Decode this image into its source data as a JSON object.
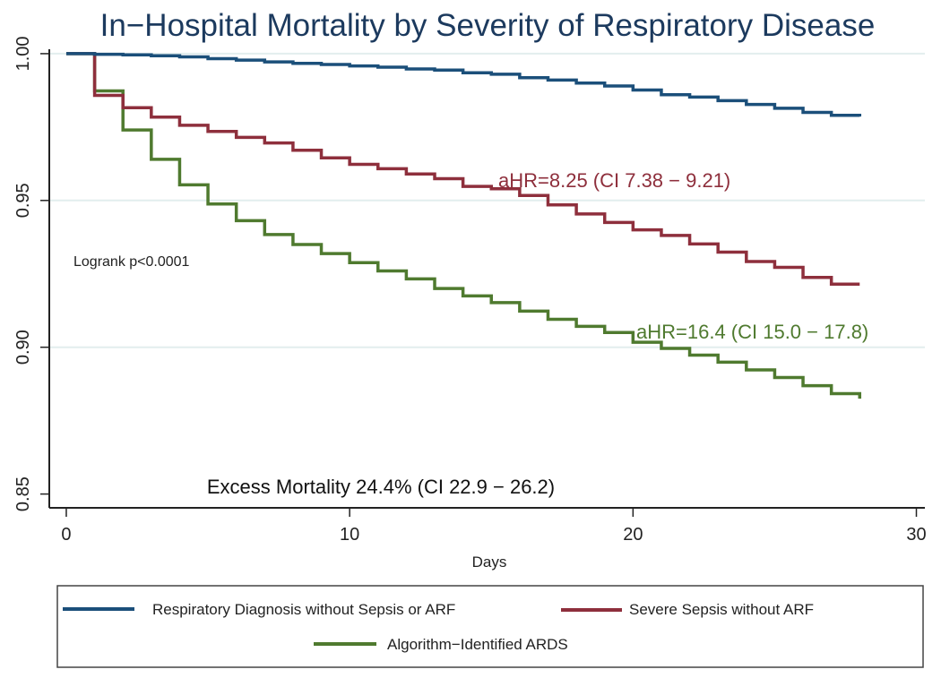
{
  "chart_data": {
    "type": "line",
    "style": "step",
    "title": "In−Hospital Mortality by Severity of Respiratory Disease",
    "xlabel": "Days",
    "ylabel": "",
    "xlim": [
      -0.6,
      30.3
    ],
    "ylim": [
      0.8453,
      1.0015
    ],
    "xticks": [
      0,
      10,
      20,
      30
    ],
    "xtick_labels": [
      "0",
      "10",
      "20",
      "30"
    ],
    "yticks": [
      0.85,
      0.9,
      0.95,
      1.0
    ],
    "ytick_labels": [
      "0.85",
      "0.90",
      "0.95",
      "1.00"
    ],
    "grid": true,
    "x": [
      0,
      1,
      2,
      3,
      4,
      5,
      6,
      7,
      8,
      9,
      10,
      11,
      12,
      13,
      14,
      15,
      16,
      17,
      18,
      19,
      20,
      21,
      22,
      23,
      24,
      25,
      26,
      27,
      28
    ],
    "series": [
      {
        "name": "Respiratory Diagnosis without Sepsis or ARF",
        "color": "#1b4f7a",
        "values": [
          1.0,
          0.9998,
          0.9996,
          0.9993,
          0.9989,
          0.9983,
          0.9978,
          0.9972,
          0.9967,
          0.9963,
          0.9958,
          0.9954,
          0.9948,
          0.9944,
          0.9935,
          0.993,
          0.9918,
          0.991,
          0.99,
          0.989,
          0.9876,
          0.986,
          0.9852,
          0.984,
          0.9827,
          0.9814,
          0.98,
          0.979,
          0.9786
        ]
      },
      {
        "name": "Severe Sepsis without ARF",
        "color": "#8e2f3c",
        "values": [
          1.0,
          0.9858,
          0.9816,
          0.9784,
          0.9756,
          0.9735,
          0.9715,
          0.9696,
          0.9671,
          0.9645,
          0.9623,
          0.9608,
          0.959,
          0.9574,
          0.9548,
          0.954,
          0.9517,
          0.9485,
          0.9454,
          0.9425,
          0.94,
          0.9381,
          0.9352,
          0.9324,
          0.9292,
          0.9272,
          0.9238,
          0.9215,
          0.9215
        ]
      },
      {
        "name": "Algorithm−Identified ARDS",
        "color": "#4f7a2f",
        "values": [
          1.0,
          0.9873,
          0.974,
          0.964,
          0.9553,
          0.9488,
          0.9431,
          0.9384,
          0.935,
          0.9319,
          0.9288,
          0.926,
          0.9233,
          0.92,
          0.9175,
          0.9152,
          0.9123,
          0.9095,
          0.9071,
          0.905,
          0.9017,
          0.8996,
          0.8973,
          0.8949,
          0.8923,
          0.8897,
          0.8869,
          0.8842,
          0.8825
        ]
      }
    ],
    "annotations": {
      "sepsis_hr": "aHR=8.25 (CI 7.38 − 9.21)",
      "ards_hr": "aHR=16.4 (CI 15.0 − 17.8)",
      "logrank": "Logrank p<0.0001",
      "excess": "Excess Mortality 24.4% (CI 22.9 − 26.2)"
    },
    "legend_position": "bottom",
    "colors": {
      "title": "#1c3a5e",
      "grid": "#e2eeee",
      "axis": "#222222"
    }
  }
}
